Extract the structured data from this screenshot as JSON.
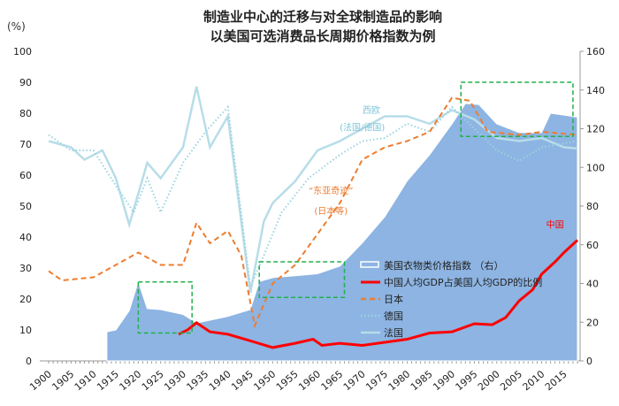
{
  "chart_data": {
    "type": "line",
    "title": [
      "制造业中心的迁移与对全球制造品的影响",
      "以美国可选消费品长周期价格指数为例"
    ],
    "ylabel": "(%)",
    "xlim": [
      1900,
      2018
    ],
    "ylim": [
      0,
      100
    ],
    "y2lim": [
      0,
      160
    ],
    "x_ticks": [
      1900,
      1905,
      1910,
      1915,
      1920,
      1925,
      1930,
      1935,
      1940,
      1945,
      1950,
      1955,
      1960,
      1965,
      1970,
      1975,
      1980,
      1985,
      1990,
      1995,
      2000,
      2005,
      2010,
      2015
    ],
    "y_ticks": [
      0,
      10,
      20,
      30,
      40,
      50,
      60,
      70,
      80,
      90,
      100
    ],
    "y2_ticks": [
      0,
      20,
      40,
      60,
      80,
      100,
      120,
      140,
      160
    ],
    "legend_placement": "lower-right",
    "series": [
      {
        "name": "美国衣物类价格指数 （右）",
        "axis": "right",
        "style": "area",
        "color": "#8db4e2",
        "x": [
          1913,
          1915,
          1918,
          1920,
          1922,
          1925,
          1930,
          1933,
          1936,
          1940,
          1945,
          1947,
          1950,
          1955,
          1960,
          1965,
          1970,
          1975,
          1980,
          1985,
          1990,
          1993,
          1996,
          2000,
          2005,
          2010,
          2012,
          2015,
          2018
        ],
        "y": [
          15,
          16,
          26,
          41,
          27,
          26.5,
          24,
          19.6,
          21,
          23,
          26.5,
          41,
          43,
          44,
          45,
          49,
          61,
          74.5,
          93,
          106.5,
          122.5,
          133,
          132.5,
          122.5,
          118,
          118,
          128,
          127,
          126
        ]
      },
      {
        "name": "中国人均GDP占美国人均GDP的比例",
        "axis": "left",
        "style": "solid",
        "color": "#ff0000",
        "x": [
          1929,
          1931,
          1933,
          1936,
          1940,
          1945,
          1950,
          1955,
          1959,
          1961,
          1965,
          1970,
          1975,
          1980,
          1985,
          1990,
          1995,
          1999,
          2002,
          2005,
          2008,
          2010,
          2013,
          2015,
          2018
        ],
        "y": [
          8.6,
          10,
          12.3,
          9.4,
          8.6,
          6.5,
          4.3,
          5.7,
          7,
          5,
          5.7,
          5,
          6,
          7,
          9,
          9.4,
          12,
          11.7,
          14,
          19.4,
          23,
          28,
          32,
          35,
          39
        ]
      },
      {
        "name": "日本",
        "axis": "left",
        "style": "dashed",
        "color": "#ed7d31",
        "x": [
          1900,
          1903,
          1910,
          1915,
          1920,
          1925,
          1930,
          1933,
          1936,
          1940,
          1943,
          1946,
          1950,
          1955,
          1960,
          1965,
          1970,
          1975,
          1980,
          1985,
          1990,
          1994,
          1998,
          2005,
          2010,
          2018
        ],
        "y": [
          29,
          26,
          27,
          31,
          35,
          31,
          31,
          44.6,
          38,
          42,
          34,
          11.4,
          25,
          31,
          41,
          51,
          65,
          69,
          71,
          74,
          85,
          84,
          74,
          73,
          74,
          73
        ]
      },
      {
        "name": "德国",
        "axis": "left",
        "style": "dotted",
        "color": "#9dd3e0",
        "x": [
          1900,
          1905,
          1910,
          1915,
          1919,
          1922,
          1925,
          1930,
          1935,
          1940,
          1945,
          1948,
          1952,
          1958,
          1965,
          1970,
          1975,
          1980,
          1985,
          1990,
          1995,
          2000,
          2005,
          2010,
          2018
        ],
        "y": [
          73,
          68,
          68,
          56.6,
          48,
          59,
          48,
          64,
          74,
          82,
          24,
          34,
          48,
          59,
          66.6,
          71,
          72,
          76.6,
          74,
          82,
          75,
          68,
          64.6,
          69,
          71
        ]
      },
      {
        "name": "法国",
        "axis": "left",
        "style": "solid",
        "color": "#b7dde8",
        "x": [
          1900,
          1905,
          1908,
          1912,
          1915,
          1918,
          1922,
          1925,
          1930,
          1933,
          1936,
          1940,
          1945,
          1948,
          1950,
          1955,
          1960,
          1965,
          1970,
          1975,
          1980,
          1985,
          1990,
          1995,
          2000,
          2005,
          2010,
          2015,
          2018
        ],
        "y": [
          71,
          69,
          65,
          68,
          59,
          44,
          64,
          59,
          69,
          88.6,
          69,
          79,
          22,
          45,
          51,
          58,
          68,
          71,
          75,
          79,
          79,
          76.6,
          81,
          78,
          72,
          71,
          72,
          69,
          68.6
        ]
      }
    ],
    "annotations": [
      {
        "text": "西欧",
        "x": 1972,
        "y": 80,
        "color": "#7fc4d8"
      },
      {
        "text": "(法国/德国)",
        "x": 1970,
        "y": 74.5,
        "color": "#7fc4d8"
      },
      {
        "text": "“东亚奇迹”",
        "x": 1963,
        "y": 54,
        "color": "#ed7d31"
      },
      {
        "text": "(日本等)",
        "x": 1963,
        "y": 47.5,
        "color": "#ed7d31"
      },
      {
        "text": "中国",
        "x": 2013,
        "y": 43,
        "color": "#ff0000"
      }
    ],
    "highlight_boxes": [
      {
        "x": [
          1920,
          1932
        ],
        "y": [
          9,
          25.5
        ],
        "color": "#22b14c"
      },
      {
        "x": [
          1947,
          1966
        ],
        "y": [
          20.5,
          32
        ],
        "color": "#22b14c"
      },
      {
        "x": [
          1992,
          2017
        ],
        "y": [
          72.5,
          90
        ],
        "color": "#22b14c"
      }
    ]
  }
}
